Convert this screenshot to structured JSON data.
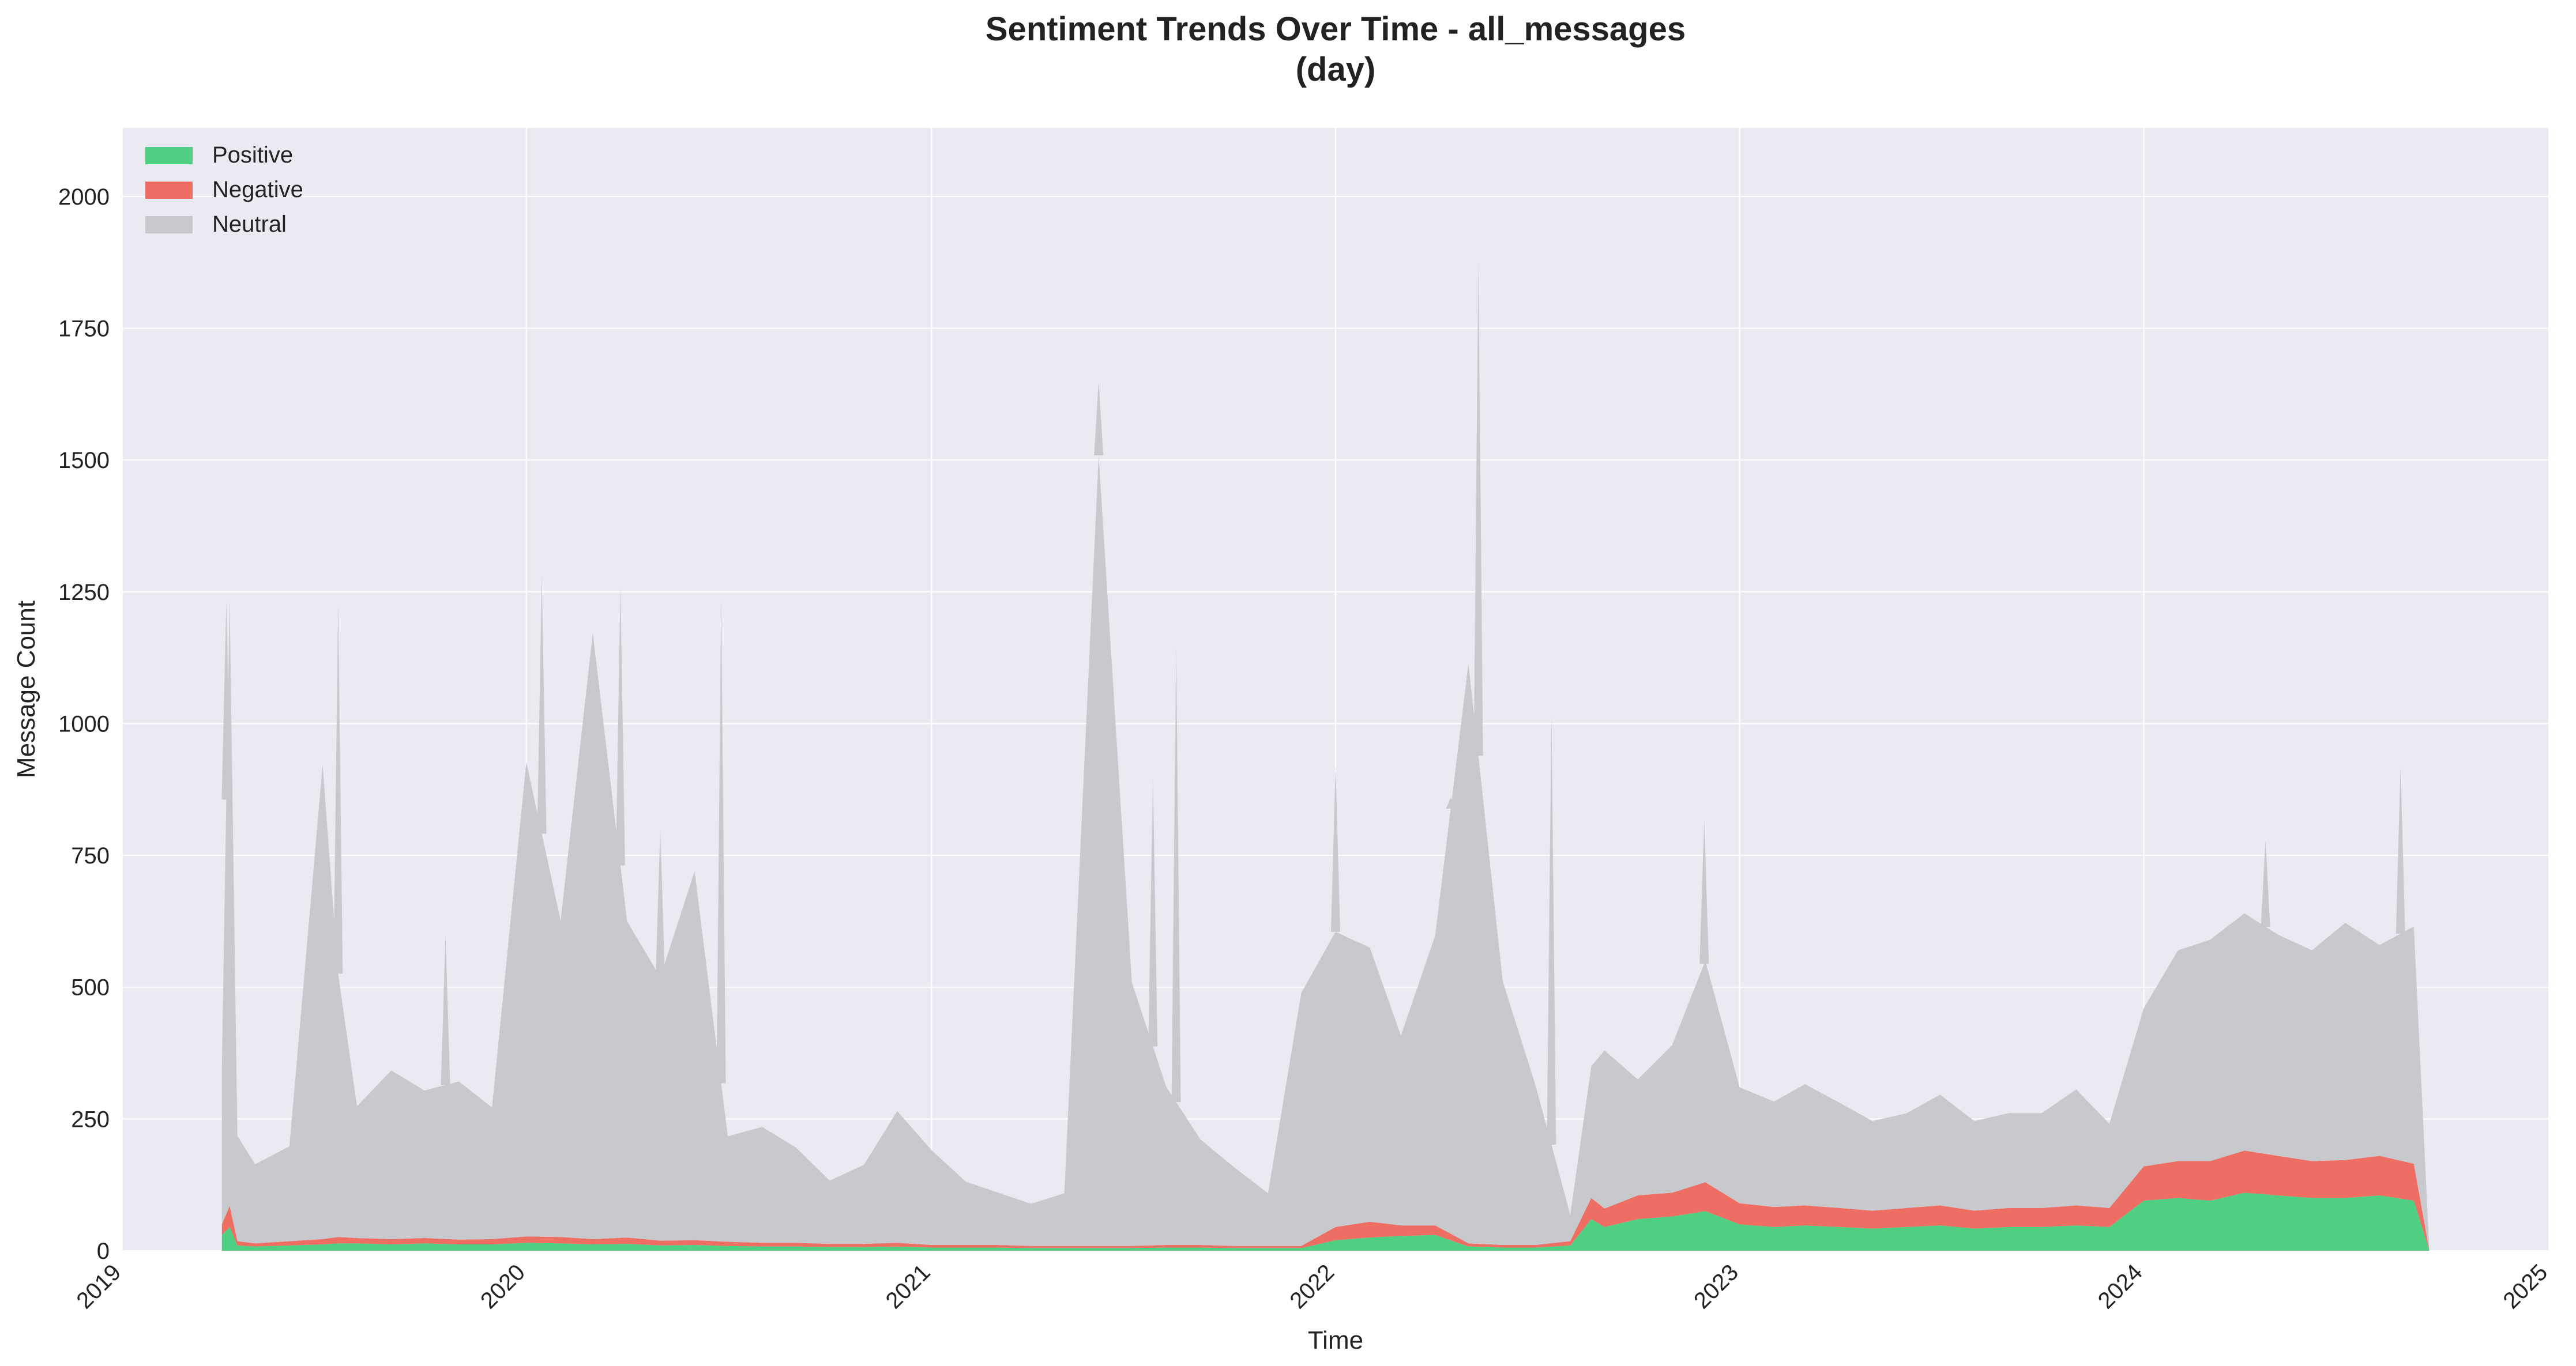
{
  "chart_data": {
    "type": "area",
    "stacked": true,
    "title": "Sentiment Trends Over Time - all_messages",
    "subtitle": "(day)",
    "xlabel": "Time",
    "ylabel": "Message Count",
    "xlim": [
      "2019-01-01",
      "2025-01-01"
    ],
    "ylim": [
      0,
      2130
    ],
    "x_ticks": [
      "2019",
      "2020",
      "2021",
      "2022",
      "2023",
      "2024",
      "2025"
    ],
    "y_ticks": [
      0,
      250,
      500,
      750,
      1000,
      1250,
      1500,
      1750,
      2000
    ],
    "grid": true,
    "legend_position": "top-left",
    "colors": {
      "plot_background": "#eaeaf2",
      "grid": "#ffffff",
      "positive": "#4fcf82",
      "negative": "#ee6e63",
      "neutral": "#c8c9cd"
    },
    "series": [
      {
        "name": "Positive",
        "color": "#4fcf82",
        "x": [
          "2019-04-01",
          "2019-04-08",
          "2019-04-15",
          "2019-05-01",
          "2019-06-01",
          "2019-07-01",
          "2019-07-15",
          "2019-08-01",
          "2019-09-01",
          "2019-10-01",
          "2019-11-01",
          "2019-12-01",
          "2020-01-01",
          "2020-02-01",
          "2020-03-01",
          "2020-04-01",
          "2020-05-01",
          "2020-06-01",
          "2020-07-01",
          "2020-08-01",
          "2020-09-01",
          "2020-10-01",
          "2020-11-01",
          "2020-12-01",
          "2021-01-01",
          "2021-02-01",
          "2021-03-01",
          "2021-04-01",
          "2021-05-01",
          "2021-06-01",
          "2021-07-01",
          "2021-08-01",
          "2021-09-01",
          "2021-10-01",
          "2021-11-01",
          "2021-12-01",
          "2022-01-01",
          "2022-02-01",
          "2022-03-01",
          "2022-04-01",
          "2022-05-01",
          "2022-06-01",
          "2022-07-01",
          "2022-08-01",
          "2022-08-20",
          "2022-09-01",
          "2022-10-01",
          "2022-11-01",
          "2022-12-01",
          "2023-01-01",
          "2023-02-01",
          "2023-03-01",
          "2023-04-01",
          "2023-05-01",
          "2023-06-01",
          "2023-07-01",
          "2023-08-01",
          "2023-09-01",
          "2023-10-01",
          "2023-11-01",
          "2023-12-01",
          "2024-01-01",
          "2024-02-01",
          "2024-03-01",
          "2024-04-01",
          "2024-05-01",
          "2024-06-01",
          "2024-07-01",
          "2024-08-01",
          "2024-09-01",
          "2024-09-15"
        ],
        "values": [
          30,
          45,
          10,
          8,
          10,
          12,
          14,
          14,
          12,
          14,
          12,
          12,
          15,
          14,
          12,
          13,
          10,
          11,
          9,
          8,
          8,
          7,
          7,
          8,
          6,
          6,
          6,
          5,
          5,
          5,
          5,
          6,
          6,
          5,
          5,
          5,
          20,
          25,
          28,
          30,
          8,
          6,
          6,
          10,
          60,
          45,
          60,
          65,
          75,
          50,
          45,
          48,
          45,
          42,
          45,
          48,
          42,
          45,
          45,
          48,
          45,
          95,
          100,
          95,
          110,
          105,
          100,
          100,
          105,
          95,
          0
        ]
      },
      {
        "name": "Negative",
        "color": "#ee6e63",
        "x": [
          "2019-04-01",
          "2019-04-08",
          "2019-04-15",
          "2019-05-01",
          "2019-06-01",
          "2019-07-01",
          "2019-07-15",
          "2019-08-01",
          "2019-09-01",
          "2019-10-01",
          "2019-11-01",
          "2019-12-01",
          "2020-01-01",
          "2020-02-01",
          "2020-03-01",
          "2020-04-01",
          "2020-05-01",
          "2020-06-01",
          "2020-07-01",
          "2020-08-01",
          "2020-09-01",
          "2020-10-01",
          "2020-11-01",
          "2020-12-01",
          "2021-01-01",
          "2021-02-01",
          "2021-03-01",
          "2021-04-01",
          "2021-05-01",
          "2021-06-01",
          "2021-07-01",
          "2021-08-01",
          "2021-09-01",
          "2021-10-01",
          "2021-11-01",
          "2021-12-01",
          "2022-01-01",
          "2022-02-01",
          "2022-03-01",
          "2022-04-01",
          "2022-05-01",
          "2022-06-01",
          "2022-07-01",
          "2022-08-01",
          "2022-08-20",
          "2022-09-01",
          "2022-10-01",
          "2022-11-01",
          "2022-12-01",
          "2023-01-01",
          "2023-02-01",
          "2023-03-01",
          "2023-04-01",
          "2023-05-01",
          "2023-06-01",
          "2023-07-01",
          "2023-08-01",
          "2023-09-01",
          "2023-10-01",
          "2023-11-01",
          "2023-12-01",
          "2024-01-01",
          "2024-02-01",
          "2024-03-01",
          "2024-04-01",
          "2024-05-01",
          "2024-06-01",
          "2024-07-01",
          "2024-08-01",
          "2024-09-01",
          "2024-09-15"
        ],
        "values": [
          20,
          40,
          8,
          6,
          8,
          10,
          12,
          10,
          10,
          10,
          9,
          10,
          12,
          12,
          10,
          12,
          9,
          9,
          8,
          7,
          7,
          6,
          6,
          7,
          5,
          5,
          5,
          4,
          4,
          4,
          4,
          5,
          5,
          4,
          4,
          4,
          25,
          30,
          20,
          18,
          6,
          5,
          5,
          8,
          40,
          35,
          45,
          45,
          55,
          40,
          38,
          38,
          36,
          34,
          36,
          38,
          34,
          36,
          36,
          38,
          36,
          65,
          70,
          75,
          80,
          75,
          70,
          72,
          75,
          70,
          0
        ]
      },
      {
        "name": "Neutral",
        "color": "#c8c9cd",
        "x": [
          "2019-04-01",
          "2019-04-08",
          "2019-04-15",
          "2019-05-01",
          "2019-06-01",
          "2019-07-01",
          "2019-07-15",
          "2019-08-01",
          "2019-09-01",
          "2019-10-01",
          "2019-11-01",
          "2019-12-01",
          "2020-01-01",
          "2020-02-01",
          "2020-03-01",
          "2020-04-01",
          "2020-05-01",
          "2020-06-01",
          "2020-07-01",
          "2020-08-01",
          "2020-09-01",
          "2020-10-01",
          "2020-11-01",
          "2020-12-01",
          "2021-01-01",
          "2021-02-01",
          "2021-03-01",
          "2021-04-01",
          "2021-05-01",
          "2021-06-01",
          "2021-07-01",
          "2021-08-01",
          "2021-09-01",
          "2021-10-01",
          "2021-11-01",
          "2021-12-01",
          "2022-01-01",
          "2022-02-01",
          "2022-03-01",
          "2022-04-01",
          "2022-05-01",
          "2022-06-01",
          "2022-07-01",
          "2022-08-01",
          "2022-08-20",
          "2022-09-01",
          "2022-10-01",
          "2022-11-01",
          "2022-12-01",
          "2023-01-01",
          "2023-02-01",
          "2023-03-01",
          "2023-04-01",
          "2023-05-01",
          "2023-06-01",
          "2023-07-01",
          "2023-08-01",
          "2023-09-01",
          "2023-10-01",
          "2023-11-01",
          "2023-12-01",
          "2024-01-01",
          "2024-02-01",
          "2024-03-01",
          "2024-04-01",
          "2024-05-01",
          "2024-06-01",
          "2024-07-01",
          "2024-08-01",
          "2024-09-01",
          "2024-09-15"
        ],
        "values": [
          300,
          1150,
          200,
          150,
          180,
          900,
          500,
          250,
          320,
          280,
          300,
          250,
          900,
          600,
          1150,
          600,
          500,
          700,
          200,
          220,
          180,
          120,
          150,
          250,
          180,
          120,
          100,
          80,
          100,
          1500,
          500,
          300,
          200,
          150,
          100,
          480,
          560,
          520,
          360,
          550,
          1100,
          500,
          300,
          50,
          250,
          300,
          220,
          280,
          420,
          220,
          200,
          230,
          200,
          170,
          180,
          210,
          170,
          180,
          180,
          220,
          160,
          300,
          400,
          420,
          450,
          420,
          400,
          450,
          400,
          450,
          0
        ]
      }
    ],
    "spikes": [
      {
        "x": "2019-04-05",
        "value": 1230
      },
      {
        "x": "2019-07-15",
        "value": 1230
      },
      {
        "x": "2019-10-20",
        "value": 600
      },
      {
        "x": "2020-01-15",
        "value": 1280
      },
      {
        "x": "2020-03-26",
        "value": 1260
      },
      {
        "x": "2020-05-01",
        "value": 800
      },
      {
        "x": "2020-06-25",
        "value": 1240
      },
      {
        "x": "2021-06-01",
        "value": 1650
      },
      {
        "x": "2021-07-20",
        "value": 900
      },
      {
        "x": "2021-08-10",
        "value": 1150
      },
      {
        "x": "2022-01-01",
        "value": 920
      },
      {
        "x": "2022-04-15",
        "value": 860
      },
      {
        "x": "2022-05-10",
        "value": 1880
      },
      {
        "x": "2022-07-15",
        "value": 1020
      },
      {
        "x": "2022-11-30",
        "value": 820
      },
      {
        "x": "2024-04-20",
        "value": 780
      },
      {
        "x": "2024-08-20",
        "value": 920
      }
    ]
  }
}
